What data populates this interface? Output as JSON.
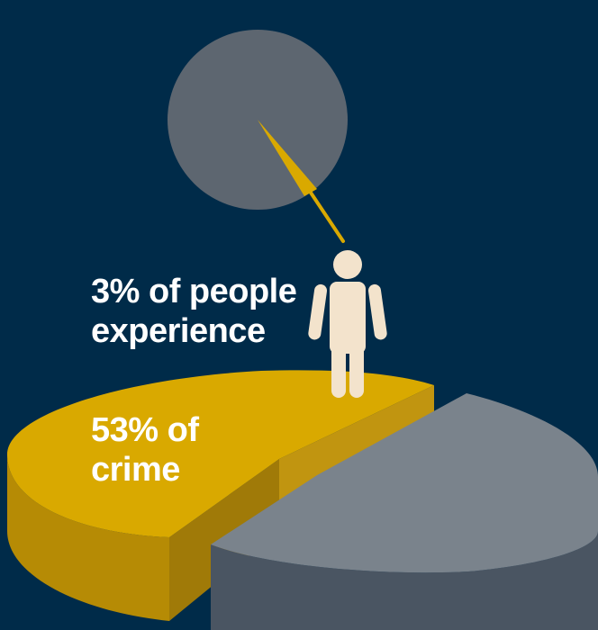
{
  "chart_data": [
    {
      "type": "pie",
      "slices": [
        {
          "label": "3% of people experience",
          "value": 3,
          "color": "#d9a900"
        },
        {
          "label": "",
          "value": 97,
          "color": "#5d6670"
        }
      ]
    },
    {
      "type": "pie",
      "slices": [
        {
          "label": "53% of crime",
          "value": 53,
          "color": "#d9a900"
        },
        {
          "label": "",
          "value": 47,
          "color": "#7a838c"
        }
      ]
    }
  ],
  "labels": {
    "people_line1": "3% of people",
    "people_line2": "experience",
    "crime_line1": "53% of",
    "crime_line2": "crime"
  },
  "colors": {
    "background": "#002b49",
    "accent": "#d9a900",
    "grey": "#7a838c",
    "figure": "#f3e3cc"
  },
  "icons": {
    "person": "person-icon"
  }
}
